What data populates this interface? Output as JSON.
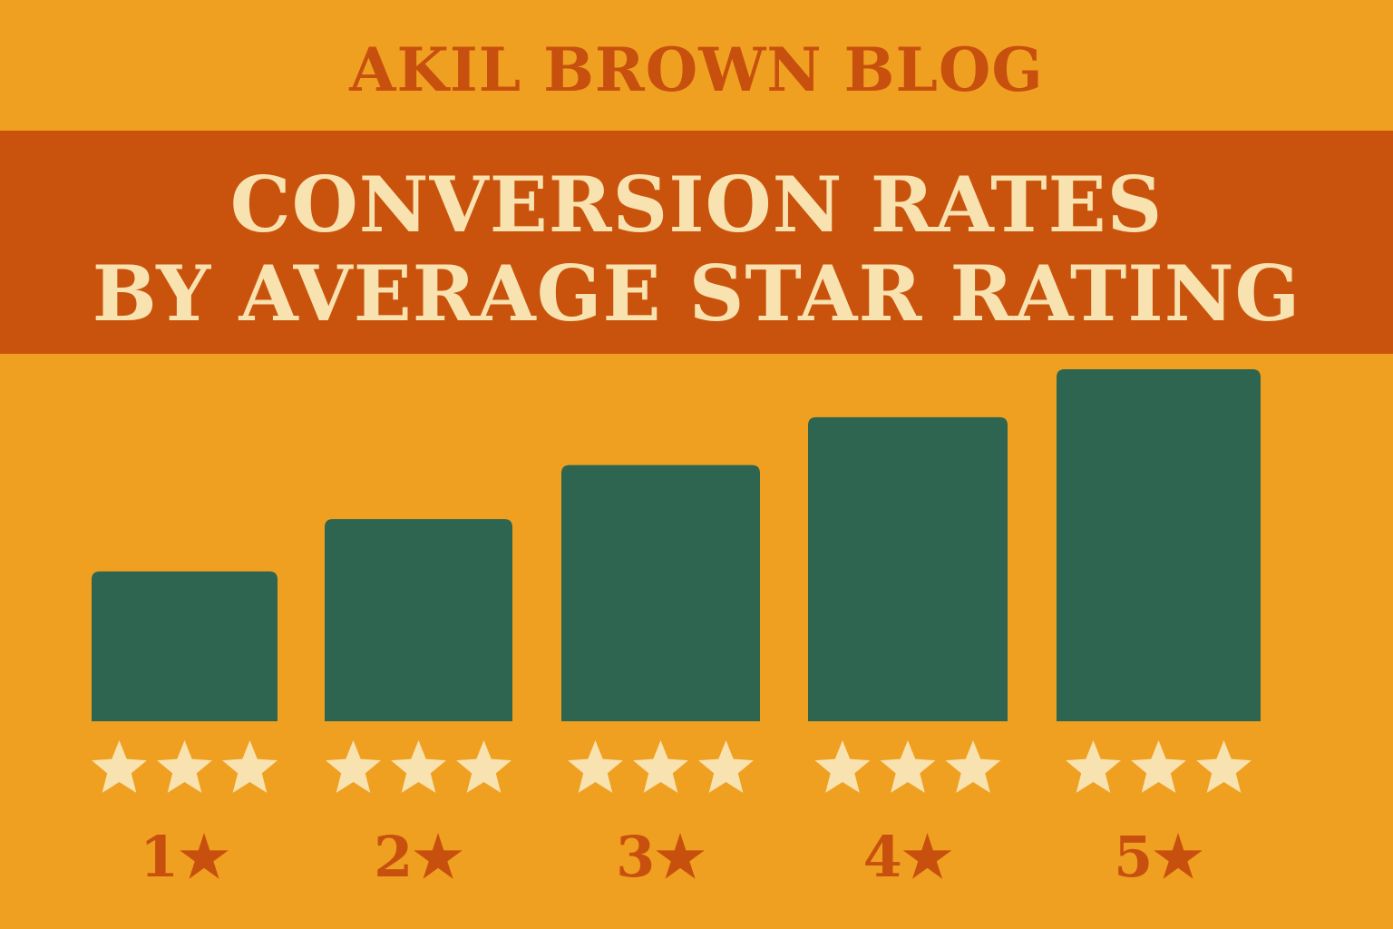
{
  "header": {
    "blog_name": "AKIL BROWN BLOG",
    "title_line1": "CONVERSION RATES",
    "title_line2": "BY AVERAGE STAR RATING"
  },
  "colors": {
    "background": "#F0A020",
    "banner": "#C9530C",
    "accent_text": "#C8500E",
    "banner_text": "#F8E2B0",
    "bar": "#2D6550",
    "star": "#F8E2B0"
  },
  "chart_data": {
    "type": "bar",
    "title": "CONVERSION RATES BY AVERAGE STAR RATING",
    "categories": [
      "1★",
      "2★",
      "3★",
      "4★",
      "5★"
    ],
    "values": [
      1.0,
      1.35,
      1.71,
      2.03,
      2.35
    ],
    "ylim": [
      0,
      2.35
    ],
    "xlabel": "",
    "ylabel": "",
    "grid": false,
    "legend": "none",
    "stars_per_category": 3
  }
}
